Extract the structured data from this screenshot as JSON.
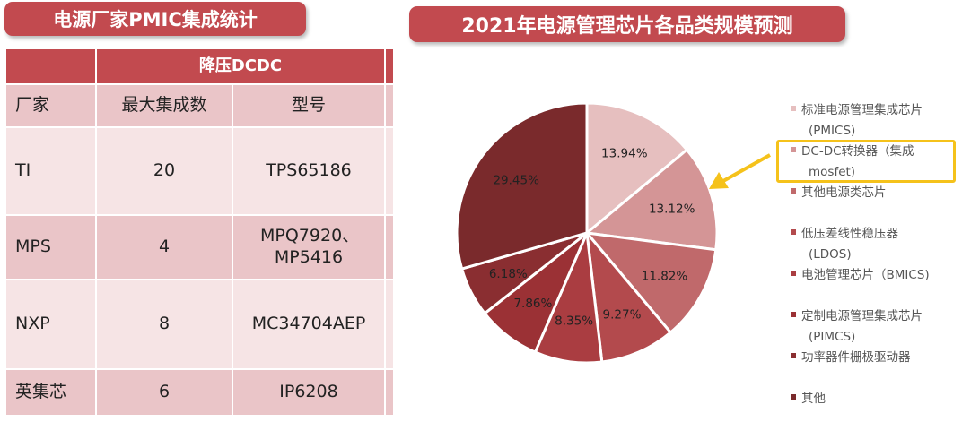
{
  "left_banner": {
    "title": "电源厂家PMIC集成统计"
  },
  "right_banner": {
    "title": "2021年电源管理芯片各品类规模预测"
  },
  "vendor_table": {
    "group_header": "降压DCDC",
    "columns": [
      "厂家",
      "最大集成数",
      "型号"
    ],
    "rows": [
      {
        "vendor": "TI",
        "max_integration": "20",
        "model": "TPS65186"
      },
      {
        "vendor": "MPS",
        "max_integration": "4",
        "model": "MPQ7920、MP5416"
      },
      {
        "vendor": "NXP",
        "max_integration": "8",
        "model": "MC34704AEP"
      },
      {
        "vendor": "英集芯",
        "max_integration": "6",
        "model": "IP6208"
      }
    ]
  },
  "chart_data": {
    "type": "pie",
    "title": "2021年电源管理芯片各品类规模预测",
    "slices": [
      {
        "label": "标准电源管理集成芯片（PMICS）",
        "value": 13.94,
        "display": "13.94%",
        "color": "#e6bfbf"
      },
      {
        "label": "DC-DC转换器（集成mosfet）",
        "value": 13.12,
        "display": "13.12%",
        "color": "#d49596"
      },
      {
        "label": "其他电源类芯片",
        "value": 11.82,
        "display": "11.82%",
        "color": "#c0696b"
      },
      {
        "label": "低压差线性稳压器（LDOS）",
        "value": 9.27,
        "display": "9.27%",
        "color": "#b34a4d"
      },
      {
        "label": "电池管理芯片（BMICS）",
        "value": 8.35,
        "display": "8.35%",
        "color": "#aa3d41"
      },
      {
        "label": "定制电源管理集成芯片（PIMCS）",
        "value": 7.86,
        "display": "7.86%",
        "color": "#9b3135"
      },
      {
        "label": "功率器件栅极驱动器",
        "value": 6.18,
        "display": "6.18%",
        "color": "#8a2e31"
      },
      {
        "label": "其他",
        "value": 29.45,
        "display": "29.45%",
        "color": "#7a2a2c"
      }
    ],
    "legend": {
      "position": "right",
      "entries": [
        {
          "lines": [
            "标准电源管理集成芯片",
            "(PMICS)"
          ],
          "color": "#e6bfbf"
        },
        {
          "lines": [
            "DC-DC转换器（集成",
            "mosfet)"
          ],
          "color": "#d49596",
          "highlighted": true
        },
        {
          "lines": [
            "其他电源类芯片"
          ],
          "color": "#c0696b"
        },
        {
          "lines": [
            "低压差线性稳压器",
            "(LDOS)"
          ],
          "color": "#b34a4d"
        },
        {
          "lines": [
            "电池管理芯片（BMICS)"
          ],
          "color": "#aa3d41"
        },
        {
          "lines": [
            "定制电源管理集成芯片",
            "(PIMCS)"
          ],
          "color": "#9b3135"
        },
        {
          "lines": [
            "功率器件栅极驱动器"
          ],
          "color": "#8a2e31"
        },
        {
          "lines": [
            "其他"
          ],
          "color": "#7a2a2c"
        }
      ]
    },
    "annotation": {
      "arrow_color": "#f5c21b",
      "points_to": "DC-DC转换器（集成mosfet）"
    }
  }
}
